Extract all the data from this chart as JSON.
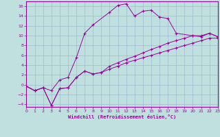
{
  "background_color": "#c0e0e0",
  "grid_color": "#a0b8cc",
  "line_color": "#990099",
  "xlabel": "Windchill (Refroidissement éolien,°C)",
  "xlim": [
    0,
    23
  ],
  "ylim": [
    -4.5,
    17
  ],
  "xticks": [
    0,
    1,
    2,
    3,
    4,
    5,
    6,
    7,
    8,
    9,
    10,
    11,
    12,
    13,
    14,
    15,
    16,
    17,
    18,
    19,
    20,
    21,
    22,
    23
  ],
  "yticks": [
    -4,
    -2,
    0,
    2,
    4,
    6,
    8,
    10,
    12,
    14,
    16
  ],
  "line1_x": [
    0,
    1,
    2,
    3,
    4,
    5,
    6,
    7,
    8,
    9,
    10,
    11,
    12,
    13,
    14,
    15,
    16,
    17,
    18,
    19,
    20,
    21,
    22,
    23
  ],
  "line1_y": [
    -0.3,
    -1.2,
    -0.6,
    -4.2,
    -0.8,
    -0.6,
    1.5,
    2.8,
    2.2,
    2.5,
    3.2,
    3.8,
    4.5,
    5.0,
    5.5,
    6.0,
    6.5,
    7.0,
    7.5,
    8.0,
    8.5,
    9.0,
    9.5,
    9.5
  ],
  "line2_x": [
    0,
    1,
    2,
    3,
    4,
    5,
    6,
    7,
    8,
    9,
    10,
    11,
    12,
    13,
    14,
    15,
    16,
    17,
    18,
    19,
    20,
    21,
    22,
    23
  ],
  "line2_y": [
    -0.3,
    -1.2,
    -0.6,
    -4.2,
    -0.8,
    -0.6,
    1.5,
    2.8,
    2.2,
    2.5,
    3.8,
    4.5,
    5.2,
    5.8,
    6.5,
    7.2,
    7.8,
    8.5,
    9.0,
    9.5,
    10.0,
    10.0,
    10.5,
    9.8
  ],
  "line3_x": [
    0,
    1,
    2,
    3,
    4,
    5,
    6,
    7,
    8,
    10,
    11,
    12,
    13,
    14,
    15,
    16,
    17,
    18,
    20,
    21,
    22,
    23
  ],
  "line3_y": [
    -0.3,
    -1.2,
    -0.6,
    -1.2,
    1.0,
    1.5,
    5.5,
    10.5,
    12.2,
    14.8,
    16.2,
    16.5,
    14.0,
    15.0,
    15.2,
    13.8,
    13.5,
    10.5,
    10.0,
    9.8,
    10.5,
    9.8
  ]
}
